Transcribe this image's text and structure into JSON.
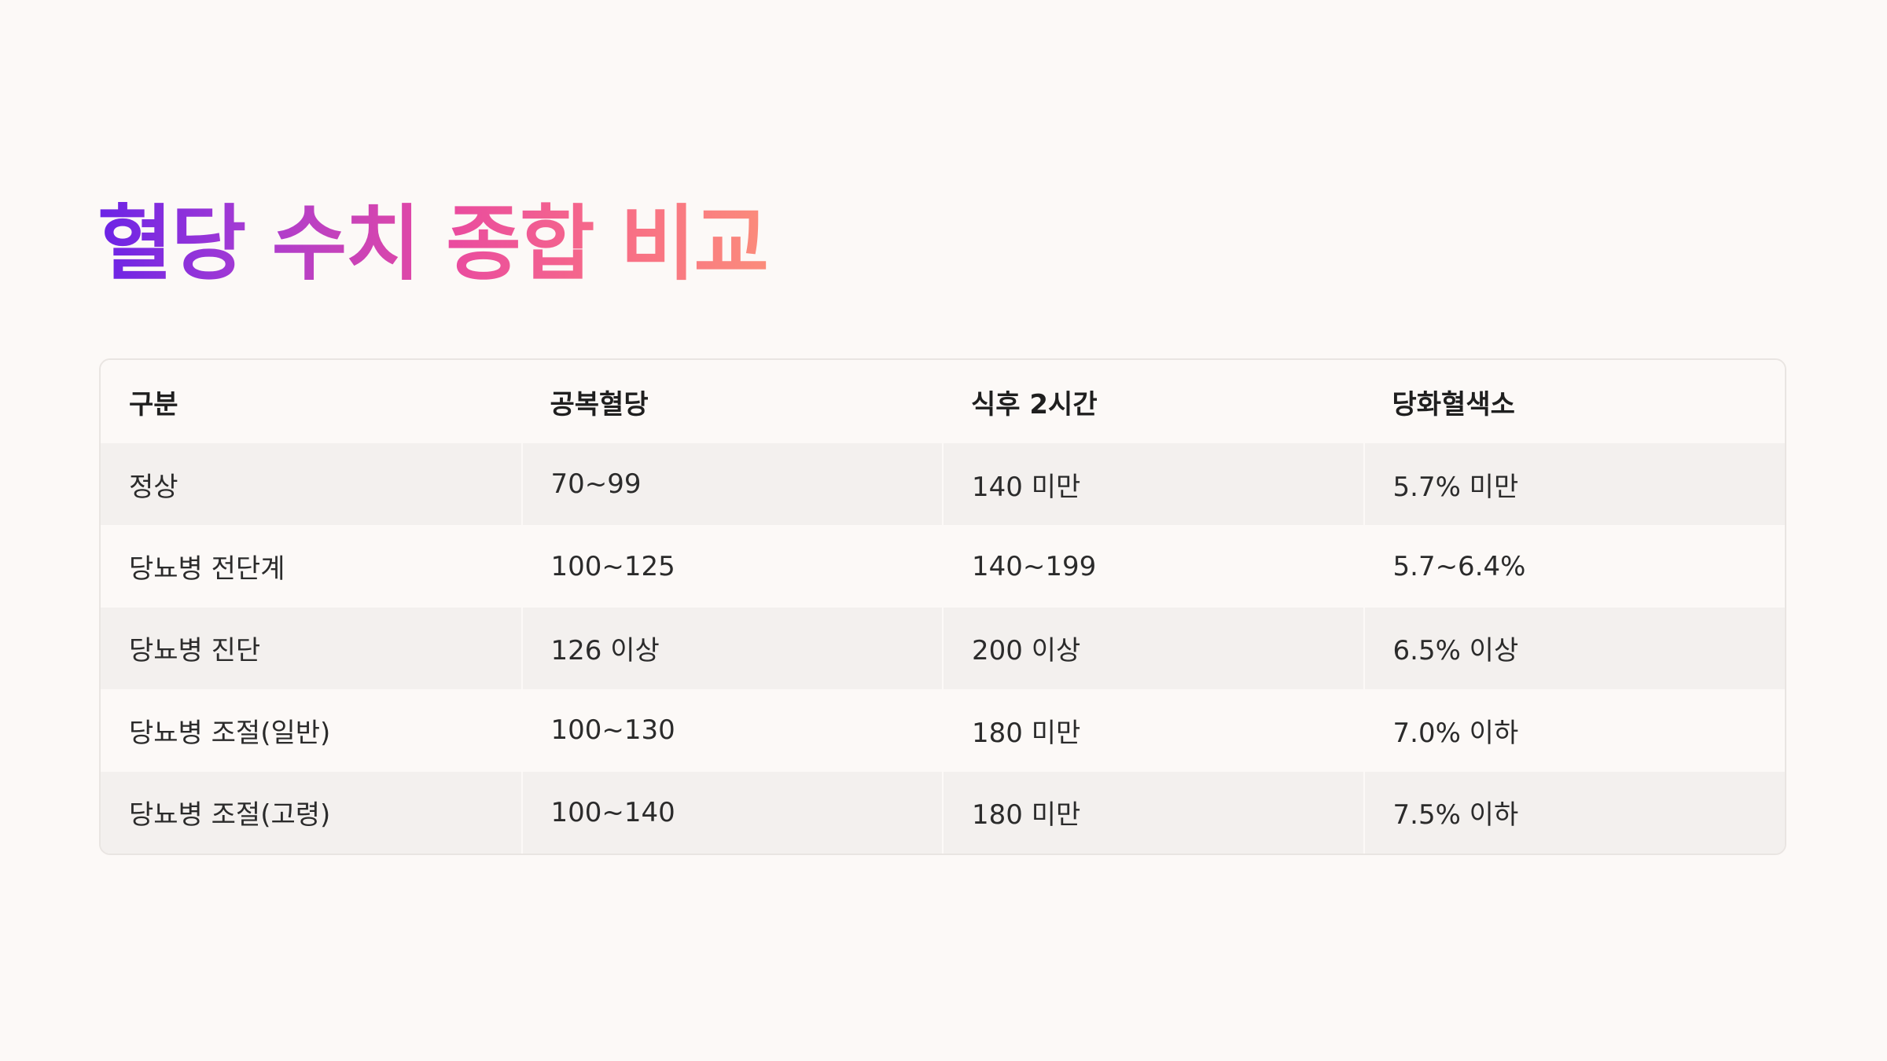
{
  "title": "혈당 수치 종합 비교",
  "table": {
    "headers": [
      "구분",
      "공복혈당",
      "식후 2시간",
      "당화혈색소"
    ],
    "rows": [
      [
        "정상",
        "70~99",
        "140 미만",
        "5.7% 미만"
      ],
      [
        "당뇨병 전단계",
        "100~125",
        "140~199",
        "5.7~6.4%"
      ],
      [
        "당뇨병 진단",
        "126 이상",
        "200 이상",
        "6.5% 이상"
      ],
      [
        "당뇨병 조절(일반)",
        "100~130",
        "180 미만",
        "7.0% 이하"
      ],
      [
        "당뇨병 조절(고령)",
        "100~140",
        "180 미만",
        "7.5% 이하"
      ]
    ]
  },
  "colors": {
    "background": "#fcf9f7",
    "row_shade": "#f3f0ee",
    "title_gradient": [
      "#6a23e6",
      "#a53bd3",
      "#e94aa0",
      "#f86e86",
      "#fb8c7b"
    ]
  }
}
